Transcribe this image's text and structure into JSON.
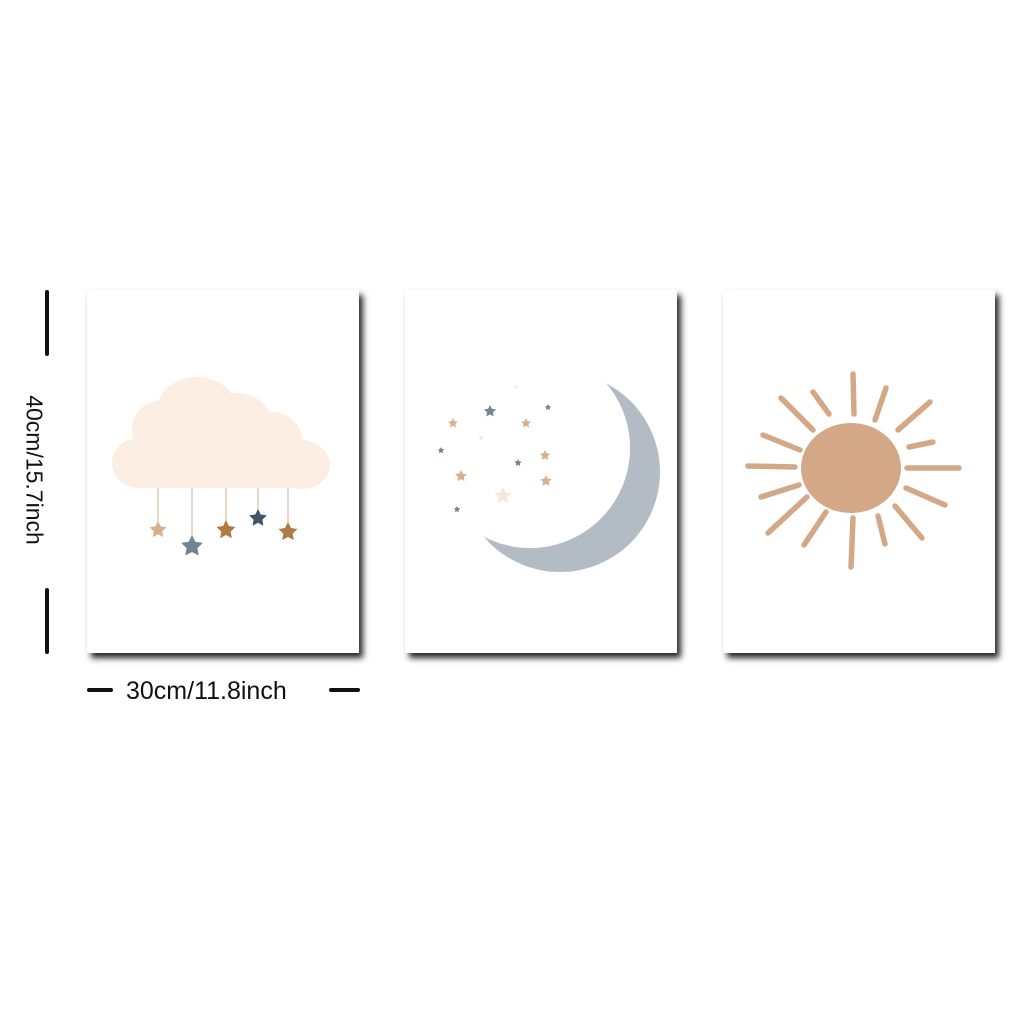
{
  "dimensions": {
    "height_label": "40cm/15.7inch",
    "width_label": "30cm/11.8inch"
  },
  "panels": [
    {
      "motif": "cloud-with-hanging-stars"
    },
    {
      "motif": "crescent-moon-with-stars"
    },
    {
      "motif": "sun"
    }
  ],
  "colors": {
    "background": "#ffffff",
    "shadow": "#000000",
    "cloud": "#fdeee4",
    "star_tan": "#d9b08c",
    "star_slate": "#6f8594",
    "star_brown": "#b07a44",
    "star_navy": "#3f5563",
    "moon": "#b3bcc4",
    "sun": "#d4a886",
    "text": "#111111"
  }
}
